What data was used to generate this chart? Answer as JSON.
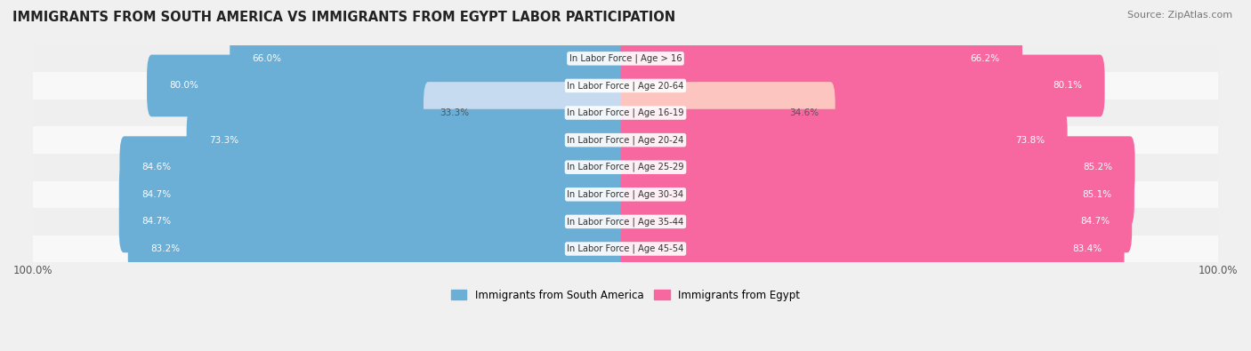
{
  "title": "IMMIGRANTS FROM SOUTH AMERICA VS IMMIGRANTS FROM EGYPT LABOR PARTICIPATION",
  "source": "Source: ZipAtlas.com",
  "categories": [
    "In Labor Force | Age > 16",
    "In Labor Force | Age 20-64",
    "In Labor Force | Age 16-19",
    "In Labor Force | Age 20-24",
    "In Labor Force | Age 25-29",
    "In Labor Force | Age 30-34",
    "In Labor Force | Age 35-44",
    "In Labor Force | Age 45-54"
  ],
  "south_america_values": [
    66.0,
    80.0,
    33.3,
    73.3,
    84.6,
    84.7,
    84.7,
    83.2
  ],
  "egypt_values": [
    66.2,
    80.1,
    34.6,
    73.8,
    85.2,
    85.1,
    84.7,
    83.4
  ],
  "south_america_color": "#6baed6",
  "south_america_light_color": "#c6dbef",
  "egypt_color": "#f768a1",
  "egypt_light_color": "#fcc5c0",
  "bg_color": "#f0f0f0",
  "label_color_dark": "#555555",
  "label_color_white": "#ffffff",
  "max_value": 100.0,
  "bar_height": 0.68,
  "legend_label_sa": "Immigrants from South America",
  "legend_label_eg": "Immigrants from Egypt"
}
